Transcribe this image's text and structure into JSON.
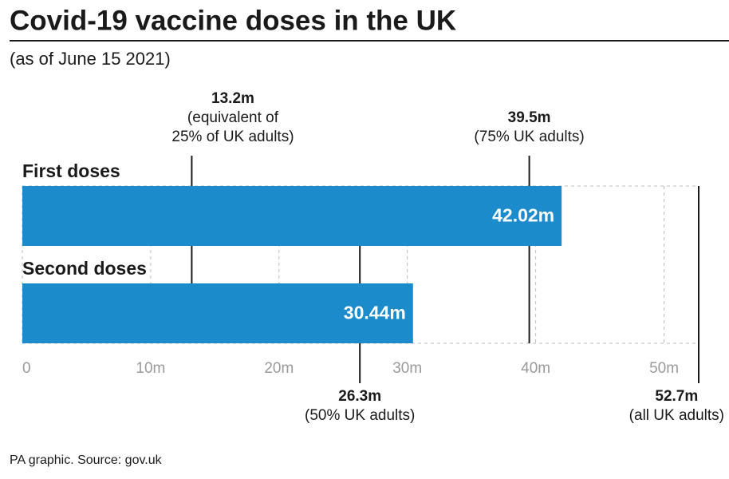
{
  "chart_data": {
    "type": "bar",
    "orientation": "horizontal",
    "title": "Covid-19 vaccine doses in the UK",
    "subtitle": "(as of June 15 2021)",
    "source": "PA graphic. Source: gov.uk",
    "categories": [
      "First doses",
      "Second doses"
    ],
    "values": [
      42.02,
      30.44
    ],
    "value_labels": [
      "42.02m",
      "30.44m"
    ],
    "color": "#1b8bcc",
    "xlim": [
      0,
      52.7
    ],
    "xticks": [
      0,
      {
        "value": 10,
        "label": "10m"
      },
      {
        "value": 20,
        "label": "20m"
      },
      {
        "value": 30,
        "label": "30m"
      },
      {
        "value": 40,
        "label": "40m"
      },
      {
        "value": 50,
        "label": "50m"
      }
    ],
    "grid": true,
    "annotations": [
      {
        "value": 13.2,
        "value_label": "13.2m",
        "lines": [
          "(equivalent of",
          "25% of UK adults)"
        ],
        "position": "top"
      },
      {
        "value": 39.5,
        "value_label": "39.5m",
        "lines": [
          "(75% UK adults)"
        ],
        "position": "top"
      },
      {
        "value": 26.3,
        "value_label": "26.3m",
        "lines": [
          "(50% UK adults)"
        ],
        "position": "bottom"
      },
      {
        "value": 52.7,
        "value_label": "52.7m",
        "lines": [
          "(all UK adults)"
        ],
        "position": "bottom"
      }
    ]
  }
}
